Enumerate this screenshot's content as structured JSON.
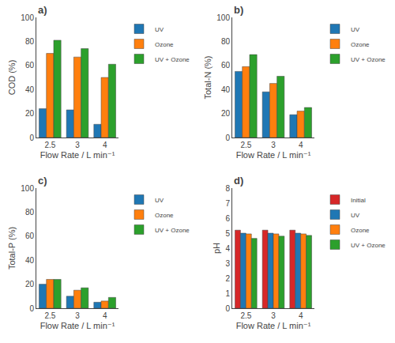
{
  "chart_data": [
    {
      "type": "bar",
      "title": "a)",
      "xlabel": "Flow Rate / L min⁻¹",
      "ylabel": "COD (%)",
      "categories": [
        "2.5",
        "3",
        "4"
      ],
      "series": [
        {
          "name": "UV",
          "color": "#1f77b4",
          "values": [
            24,
            23,
            11
          ]
        },
        {
          "name": "Ozone",
          "color": "#ff7f0e",
          "values": [
            70,
            67,
            50
          ]
        },
        {
          "name": "UV + Ozone",
          "color": "#2ca02c",
          "values": [
            81,
            74,
            61
          ]
        }
      ],
      "ylim": [
        0,
        100
      ],
      "yticks": [
        0,
        20,
        40,
        60,
        80,
        100
      ],
      "grid": false,
      "legend": "right"
    },
    {
      "type": "bar",
      "title": "b)",
      "xlabel": "Flow Rate / L min⁻¹",
      "ylabel": "Total-N (%)",
      "categories": [
        "2.5",
        "3",
        "4"
      ],
      "series": [
        {
          "name": "UV",
          "color": "#1f77b4",
          "values": [
            55,
            38,
            19
          ]
        },
        {
          "name": "Ozone",
          "color": "#ff7f0e",
          "values": [
            59,
            45,
            22
          ]
        },
        {
          "name": "UV + Ozone",
          "color": "#2ca02c",
          "values": [
            69,
            51,
            25
          ]
        }
      ],
      "ylim": [
        0,
        100
      ],
      "yticks": [
        0,
        20,
        40,
        60,
        80,
        100
      ],
      "grid": false,
      "legend": "right"
    },
    {
      "type": "bar",
      "title": "c)",
      "xlabel": "Flow Rate / L min⁻¹",
      "ylabel": "Total-P (%)",
      "categories": [
        "2.5",
        "3",
        "4"
      ],
      "series": [
        {
          "name": "UV",
          "color": "#1f77b4",
          "values": [
            20,
            10,
            5
          ]
        },
        {
          "name": "Ozone",
          "color": "#ff7f0e",
          "values": [
            24,
            15,
            6
          ]
        },
        {
          "name": "UV + Ozone",
          "color": "#2ca02c",
          "values": [
            24,
            17,
            9
          ]
        }
      ],
      "ylim": [
        0,
        100
      ],
      "yticks": [
        0,
        20,
        40,
        60,
        80,
        100
      ],
      "grid": false,
      "legend": "right"
    },
    {
      "type": "bar",
      "title": "d)",
      "xlabel": "Flow Rate / L min⁻¹",
      "ylabel": "pH",
      "categories": [
        "2.5",
        "3",
        "4"
      ],
      "series": [
        {
          "name": "Initial",
          "color": "#d62728",
          "values": [
            5.2,
            5.2,
            5.2
          ]
        },
        {
          "name": "UV",
          "color": "#1f77b4",
          "values": [
            5.0,
            5.0,
            5.0
          ]
        },
        {
          "name": "Ozone",
          "color": "#ff7f0e",
          "values": [
            4.95,
            4.95,
            4.95
          ]
        },
        {
          "name": "UV + Ozone",
          "color": "#2ca02c",
          "values": [
            4.65,
            4.8,
            4.85
          ]
        }
      ],
      "ylim": [
        0,
        8
      ],
      "yticks": [
        0,
        1,
        2,
        3,
        4,
        5,
        6,
        7,
        8
      ],
      "grid": false,
      "legend": "right"
    }
  ]
}
